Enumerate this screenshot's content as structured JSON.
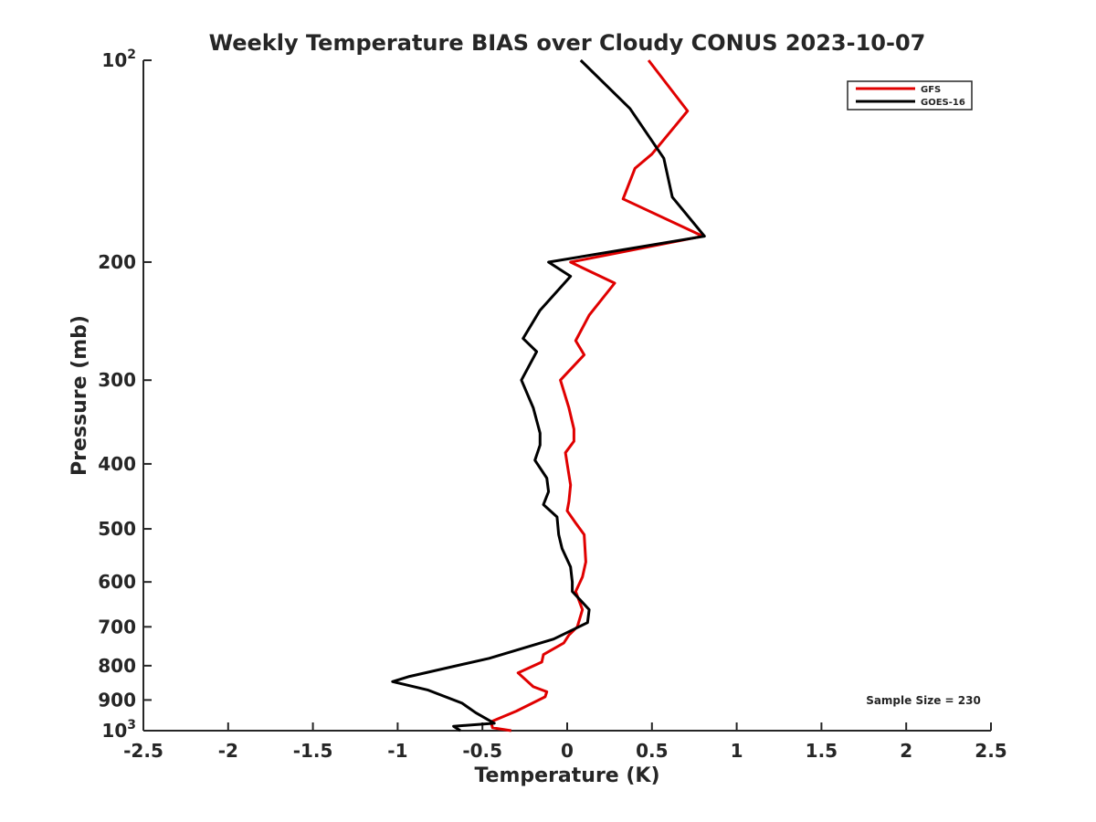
{
  "chart_data": {
    "type": "line",
    "title": "Weekly Temperature BIAS over Cloudy CONUS 2023-10-07",
    "xlabel": "Temperature (K)",
    "ylabel": "Pressure (mb)",
    "xlim": [
      -2.5,
      2.5
    ],
    "ylim": [
      100,
      1000
    ],
    "y_scale": "log",
    "y_reversed": true,
    "grid": false,
    "legend_position": "top-right",
    "x_ticks": [
      {
        "value": -2.5,
        "label": "-2.5"
      },
      {
        "value": -2,
        "label": "-2"
      },
      {
        "value": -1.5,
        "label": "-1.5"
      },
      {
        "value": -1,
        "label": "-1"
      },
      {
        "value": -0.5,
        "label": "-0.5"
      },
      {
        "value": 0,
        "label": "0"
      },
      {
        "value": 0.5,
        "label": "0.5"
      },
      {
        "value": 1,
        "label": "1"
      },
      {
        "value": 1.5,
        "label": "1.5"
      },
      {
        "value": 2,
        "label": "2"
      },
      {
        "value": 2.5,
        "label": "2.5"
      }
    ],
    "y_ticks": [
      {
        "value": 100,
        "label": "10",
        "sup": "2"
      },
      {
        "value": 200,
        "label": "200"
      },
      {
        "value": 300,
        "label": "300"
      },
      {
        "value": 400,
        "label": "400"
      },
      {
        "value": 500,
        "label": "500"
      },
      {
        "value": 600,
        "label": "600"
      },
      {
        "value": 700,
        "label": "700"
      },
      {
        "value": 800,
        "label": "800"
      },
      {
        "value": 900,
        "label": "900"
      },
      {
        "value": 1000,
        "label": "10",
        "sup": "3"
      }
    ],
    "annotation": "Sample Size = 230",
    "series": [
      {
        "name": "GFS",
        "color": "#e00000",
        "points": [
          [
            0.48,
            100
          ],
          [
            0.71,
            119
          ],
          [
            0.5,
            138
          ],
          [
            0.4,
            145
          ],
          [
            0.33,
            161
          ],
          [
            0.8,
            183
          ],
          [
            0.02,
            200
          ],
          [
            0.28,
            215
          ],
          [
            0.13,
            240
          ],
          [
            0.05,
            262
          ],
          [
            0.1,
            275
          ],
          [
            -0.04,
            300
          ],
          [
            0.01,
            330
          ],
          [
            0.04,
            355
          ],
          [
            0.04,
            370
          ],
          [
            -0.01,
            385
          ],
          [
            0.0,
            400
          ],
          [
            0.02,
            430
          ],
          [
            0.01,
            455
          ],
          [
            0.0,
            470
          ],
          [
            0.05,
            490
          ],
          [
            0.1,
            510
          ],
          [
            0.11,
            560
          ],
          [
            0.09,
            590
          ],
          [
            0.05,
            620
          ],
          [
            0.09,
            660
          ],
          [
            0.06,
            700
          ],
          [
            0.01,
            720
          ],
          [
            -0.02,
            740
          ],
          [
            -0.14,
            770
          ],
          [
            -0.15,
            790
          ],
          [
            -0.29,
            820
          ],
          [
            -0.2,
            860
          ],
          [
            -0.12,
            875
          ],
          [
            -0.13,
            890
          ],
          [
            -0.3,
            935
          ],
          [
            -0.45,
            970
          ],
          [
            -0.44,
            990
          ],
          [
            -0.33,
            1000
          ]
        ]
      },
      {
        "name": "GOES-16",
        "color": "#000000",
        "points": [
          [
            0.08,
            100
          ],
          [
            0.37,
            118
          ],
          [
            0.57,
            140
          ],
          [
            0.62,
            160
          ],
          [
            0.81,
            183
          ],
          [
            -0.11,
            200
          ],
          [
            0.02,
            210
          ],
          [
            -0.16,
            236
          ],
          [
            -0.26,
            260
          ],
          [
            -0.18,
            272
          ],
          [
            -0.27,
            300
          ],
          [
            -0.2,
            330
          ],
          [
            -0.16,
            360
          ],
          [
            -0.16,
            375
          ],
          [
            -0.19,
            395
          ],
          [
            -0.12,
            420
          ],
          [
            -0.11,
            440
          ],
          [
            -0.14,
            460
          ],
          [
            -0.06,
            480
          ],
          [
            -0.05,
            510
          ],
          [
            -0.03,
            535
          ],
          [
            0.02,
            570
          ],
          [
            0.03,
            600
          ],
          [
            0.03,
            620
          ],
          [
            0.13,
            660
          ],
          [
            0.12,
            690
          ],
          [
            -0.08,
            730
          ],
          [
            -0.46,
            780
          ],
          [
            -0.93,
            830
          ],
          [
            -1.03,
            845
          ],
          [
            -0.82,
            870
          ],
          [
            -0.62,
            910
          ],
          [
            -0.54,
            940
          ],
          [
            -0.43,
            975
          ],
          [
            -0.67,
            985
          ],
          [
            -0.63,
            1000
          ]
        ]
      }
    ]
  }
}
